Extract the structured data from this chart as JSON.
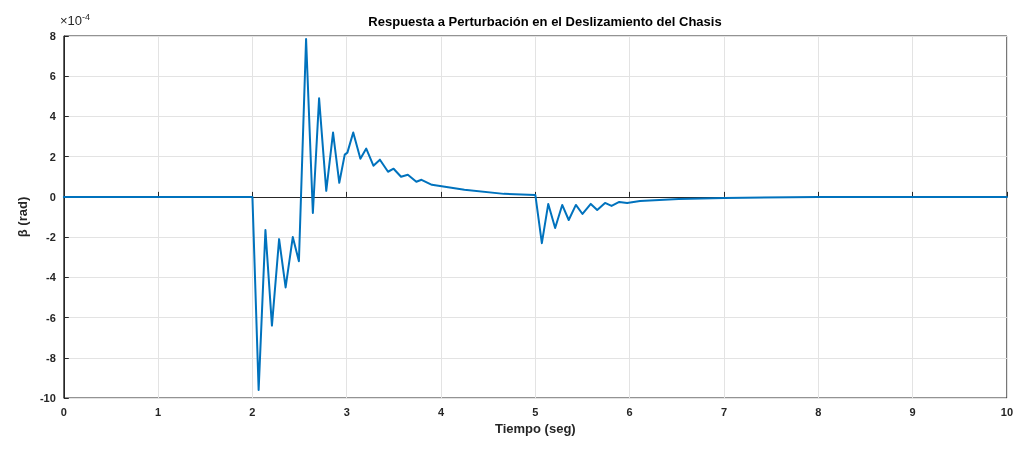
{
  "chart_data": {
    "type": "line",
    "title": "Respuesta a Perturbación en el Deslizamiento del Chasis",
    "xlabel": "Tiempo (seg)",
    "ylabel": "β (rad)",
    "annotations": [
      "×10$^{-4}$"
    ],
    "x": [
      0,
      2.0,
      2.066,
      2.138,
      2.207,
      2.283,
      2.352,
      2.428,
      2.493,
      2.569,
      2.641,
      2.707,
      2.783,
      2.855,
      2.921,
      2.979,
      3.007,
      3.069,
      3.145,
      3.207,
      3.283,
      3.352,
      3.438,
      3.497,
      3.576,
      3.648,
      3.738,
      3.793,
      3.903,
      3.972,
      4.248,
      4.667,
      5.0,
      5.069,
      5.137,
      5.21,
      5.285,
      5.354,
      5.43,
      5.5,
      5.588,
      5.656,
      5.739,
      5.808,
      5.89,
      5.973,
      6.11,
      6.52,
      7.0,
      8.0,
      10.0
    ],
    "series": [
      {
        "color": "#0072bd",
        "values": [
          0,
          0,
          -9.6,
          -1.65,
          -6.4,
          -2.1,
          -4.5,
          -2.0,
          -3.2,
          7.85,
          -0.8,
          4.9,
          0.3,
          3.2,
          0.7,
          2.1,
          2.2,
          3.2,
          1.9,
          2.4,
          1.55,
          1.85,
          1.25,
          1.4,
          1.0,
          1.1,
          0.75,
          0.85,
          0.6,
          0.55,
          0.35,
          0.15,
          0.1,
          -2.3,
          -0.35,
          -1.55,
          -0.4,
          -1.15,
          -0.4,
          -0.85,
          -0.35,
          -0.65,
          -0.3,
          -0.45,
          -0.25,
          -0.3,
          -0.2,
          -0.1,
          -0.05,
          0,
          0
        ]
      }
    ],
    "xlim": [
      0,
      10
    ],
    "xticks": [
      0,
      1,
      2,
      3,
      4,
      5,
      6,
      7,
      8,
      9,
      10
    ],
    "ylim": [
      -10,
      8
    ],
    "yticks": [
      -10,
      -8,
      -6,
      -4,
      -2,
      0,
      2,
      4,
      6,
      8
    ],
    "grid": true,
    "marker": "none",
    "line_style": "solid"
  }
}
